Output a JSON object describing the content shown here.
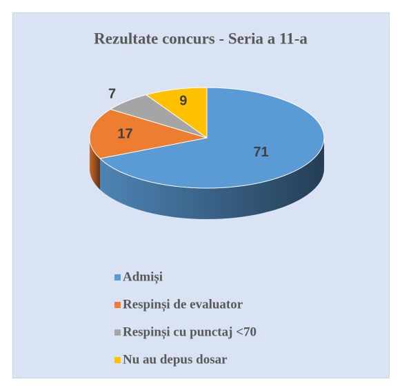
{
  "chart_data": {
    "type": "pie",
    "title": "Rezultate concurs - Seria a 11-a",
    "categories": [
      "Admiși",
      "Respinși de evaluator",
      "Respinși cu punctaj <70",
      "Nu au depus dosar"
    ],
    "values": [
      71,
      17,
      7,
      9
    ],
    "colors": [
      "#5b9bd5",
      "#ed7d31",
      "#a5a5a5",
      "#ffc000"
    ],
    "legend": "bottom"
  }
}
